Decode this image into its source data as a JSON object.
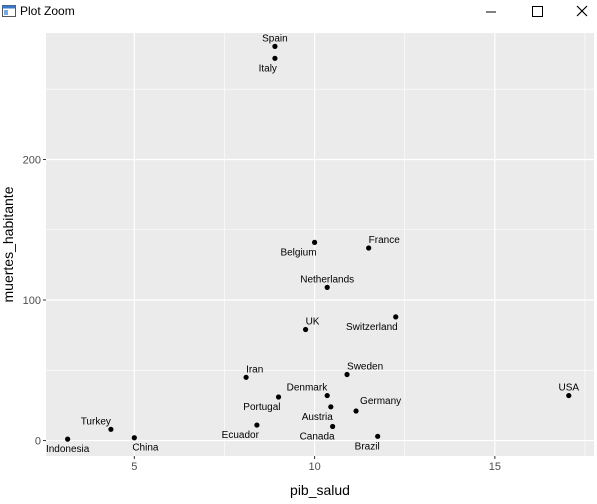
{
  "window": {
    "title": "Plot Zoom",
    "icons": {
      "app": "plot-window-icon",
      "minimize": "minimize-icon",
      "maximize": "maximize-icon",
      "close": "close-icon"
    }
  },
  "chart_data": {
    "type": "scatter",
    "title": "",
    "xlabel": "pib_salud",
    "ylabel": "muertes_habitante",
    "xlim": [
      2.55,
      17.75
    ],
    "ylim": [
      -11,
      290
    ],
    "x_ticks": [
      5,
      10,
      15
    ],
    "y_ticks": [
      0,
      100,
      200
    ],
    "grid": true,
    "background": "#ebebeb",
    "grid_color": "#ffffff",
    "point_color": "#000000",
    "points": [
      {
        "label": "Spain",
        "x": 8.9,
        "y": 280.5,
        "label_pos": "above"
      },
      {
        "label": "Italy",
        "x": 8.9,
        "y": 272,
        "label_pos": "below-left"
      },
      {
        "label": "France",
        "x": 11.5,
        "y": 137,
        "label_pos": "above-right"
      },
      {
        "label": "Belgium",
        "x": 10.0,
        "y": 141,
        "label_pos": "below-left"
      },
      {
        "label": "Netherlands",
        "x": 10.35,
        "y": 109,
        "label_pos": "above"
      },
      {
        "label": "Switzerland",
        "x": 12.25,
        "y": 88,
        "label_pos": "below-left"
      },
      {
        "label": "UK",
        "x": 9.75,
        "y": 79,
        "label_pos": "above-right"
      },
      {
        "label": "Iran",
        "x": 8.1,
        "y": 45,
        "label_pos": "above-right"
      },
      {
        "label": "Sweden",
        "x": 10.9,
        "y": 47,
        "label_pos": "above-right"
      },
      {
        "label": "Denmark",
        "x": 10.35,
        "y": 32,
        "label_pos": "above-left"
      },
      {
        "label": "Portugal",
        "x": 9.0,
        "y": 31,
        "label_pos": "below-left"
      },
      {
        "label": "Germany",
        "x": 11.15,
        "y": 21,
        "label_pos": "right"
      },
      {
        "label": "Austria",
        "x": 10.45,
        "y": 24,
        "label_pos": "below-left"
      },
      {
        "label": "USA",
        "x": 17.05,
        "y": 32,
        "label_pos": "above"
      },
      {
        "label": "Turkey",
        "x": 4.35,
        "y": 8,
        "label_pos": "above-left"
      },
      {
        "label": "Ecuador",
        "x": 8.4,
        "y": 11,
        "label_pos": "below-left"
      },
      {
        "label": "Canada",
        "x": 10.5,
        "y": 10,
        "label_pos": "below-left"
      },
      {
        "label": "Indonesia",
        "x": 3.15,
        "y": 1,
        "label_pos": "below"
      },
      {
        "label": "China",
        "x": 5.0,
        "y": 2,
        "label_pos": "below-right"
      },
      {
        "label": "Brazil",
        "x": 11.75,
        "y": 3,
        "label_pos": "below-left"
      }
    ]
  }
}
